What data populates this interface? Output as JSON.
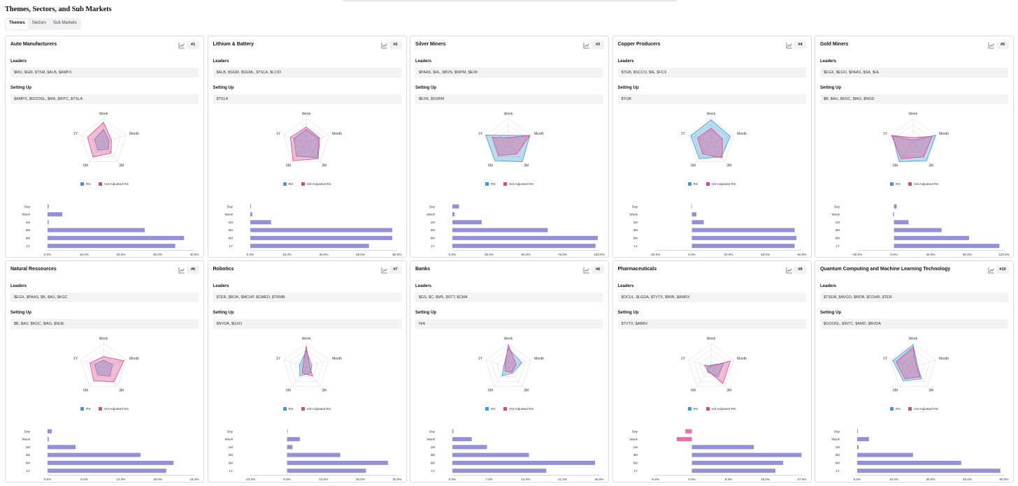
{
  "page": {
    "title": "Themes, Sectors, and Sub Markets",
    "tabs": [
      {
        "label": "Themes",
        "active": true
      },
      {
        "label": "Sectors",
        "active": false
      },
      {
        "label": "Sub Markets",
        "active": false
      }
    ]
  },
  "colors": {
    "rs": "#3a9bd5",
    "vol_adjusted_rs": "#e0438a",
    "bar": "#8f8ad8",
    "grid": "#d8d8d8"
  },
  "labels": {
    "leaders": "Leaders",
    "setting_up": "Setting Up",
    "legend_rs": "RS",
    "legend_vol": "Vol-Adjusted RS",
    "radar_axes": [
      "Week",
      "Month",
      "3M",
      "6M",
      "1Y"
    ],
    "bar_categories": [
      "Day",
      "Week",
      "1M",
      "3M",
      "6M",
      "1Y"
    ]
  },
  "cards": [
    {
      "title": "Auto Manufacturers",
      "rank": "#1",
      "leaders": "$MU, $GM, $TSM, $ALB, $AMPX",
      "setting_up": "$AMPX, $GOOGL, $MA, $INTC, $TSLA",
      "radar": {
        "rs": [
          0.55,
          0.25,
          0.35,
          0.4,
          0.4
        ],
        "vol": [
          0.85,
          0.35,
          0.55,
          0.75,
          0.7
        ]
      },
      "bars": {
        "values": [
          0.3,
          4.0,
          0.3,
          26.5,
          37.2,
          34.8
        ],
        "min": 0,
        "max": 40,
        "ticks": [
          "0.0%",
          "10.0%",
          "20.0%",
          "30.0%",
          "40.0%"
        ]
      }
    },
    {
      "title": "Lithium & Battery",
      "rank": "#2",
      "leaders": "$ALB, $SGM, $SGML, $TSLA, $LCID",
      "setting_up": "$TSLA",
      "radar": {
        "rs": [
          0.55,
          0.55,
          0.8,
          0.7,
          0.55
        ],
        "vol": [
          0.65,
          0.6,
          0.85,
          0.95,
          0.7
        ]
      },
      "bars": {
        "values": [
          0.3,
          0.8,
          8.5,
          58.0,
          58.0,
          48.5
        ],
        "min": 0,
        "max": 60,
        "ticks": [
          "0.0%",
          "15.0%",
          "30.0%",
          "45.0%",
          "60.0%"
        ]
      }
    },
    {
      "title": "Silver Miners",
      "rank": "#3",
      "leaders": "$PAAS, $HL, $BVN, $WPM, $EXK",
      "setting_up": "$EXK, $SSRM",
      "radar": {
        "rs": [
          0.3,
          0.95,
          1.0,
          0.95,
          1.0
        ],
        "vol": [
          0.2,
          0.95,
          0.6,
          0.7,
          0.7
        ]
      },
      "bars": {
        "values": [
          4.5,
          1.5,
          20.0,
          65.0,
          99.0,
          97.5
        ],
        "min": 0,
        "max": 100,
        "ticks": [
          "0.0%",
          "25.0%",
          "50.0%",
          "75.0%",
          "100.0%"
        ]
      }
    },
    {
      "title": "Copper Producers",
      "rank": "#4",
      "leaders": "$TGB, $SCCO, $IE, $FCX",
      "setting_up": "$TGB",
      "radar": {
        "rs": [
          0.95,
          0.85,
          0.75,
          0.85,
          0.9
        ],
        "vol": [
          0.6,
          0.5,
          0.8,
          0.6,
          0.6
        ]
      },
      "bars": {
        "values": [
          -0.3,
          2.5,
          6.5,
          56.0,
          57.0,
          56.0
        ],
        "min": -20,
        "max": 60,
        "ticks": [
          "-20.0%",
          "0.0%",
          "20.0%",
          "40.0%",
          "60.0%"
        ]
      }
    },
    {
      "title": "Gold Miners",
      "rank": "#5",
      "leaders": "$EGX, $EGO, $PAAS, $SA, $HL",
      "setting_up": "$B, $AU, $KGC, $IAG, $NGD",
      "radar": {
        "rs": [
          0.1,
          1.0,
          0.95,
          1.0,
          0.9
        ],
        "vol": [
          0.2,
          0.85,
          0.75,
          0.85,
          0.95
        ]
      },
      "bars": {
        "values": [
          3.0,
          -1.0,
          16.0,
          52.0,
          82.0,
          115.0
        ],
        "min": -40,
        "max": 120,
        "ticks": [
          "-40.0%",
          "0.0%",
          "40.0%",
          "80.0%",
          "120.0%"
        ]
      }
    },
    {
      "title": "Natural Ressources",
      "rank": "#6",
      "leaders": "$EGX, $PAAS, $B, $AU, $KGC",
      "setting_up": "$B, $AU, $KGC, $IAG, $NUE",
      "radar": {
        "rs": [
          0.3,
          0.4,
          0.45,
          0.4,
          0.4
        ],
        "vol": [
          0.45,
          0.9,
          0.75,
          0.7,
          0.6
        ]
      },
      "bars": {
        "values": [
          0.7,
          0.2,
          4.6,
          15.2,
          20.6,
          19.4
        ],
        "min": 0,
        "max": 24,
        "ticks": [
          "0.0%",
          "6.0%",
          "12.0%",
          "18.0%",
          "24.0%"
        ]
      }
    },
    {
      "title": "Robotics",
      "rank": "#7",
      "leaders": "$TER, $ROK, $MCHP, $GMED, $TRMB",
      "setting_up": "$NVDA, $GXO",
      "radar": {
        "rs": [
          0.7,
          0.25,
          0.3,
          0.45,
          0.3
        ],
        "vol": [
          0.9,
          0.15,
          0.45,
          0.3,
          0.15
        ]
      },
      "bars": {
        "values": [
          0.0,
          3.5,
          1.5,
          14.5,
          27.5,
          21.5
        ],
        "min": -10,
        "max": 30,
        "ticks": [
          "-10.0%",
          "0.0%",
          "10.0%",
          "20.0%",
          "30.0%"
        ]
      }
    },
    {
      "title": "Banks",
      "rank": "#8",
      "leaders": "$GS, $C, $MS, $STT, $CMA",
      "setting_up": "N/A",
      "radar": {
        "rs": [
          0.8,
          0.6,
          0.3,
          0.45,
          0.2
        ],
        "vol": [
          0.95,
          0.35,
          0.25,
          0.2,
          0.15
        ]
      },
      "bars": {
        "values": [
          0.2,
          3.7,
          6.6,
          14.6,
          27.2,
          17.9
        ],
        "min": 0,
        "max": 28,
        "ticks": [
          "0.0%",
          "7.0%",
          "14.0%",
          "21.0%",
          "28.0%"
        ]
      }
    },
    {
      "title": "Pharmaceuticals",
      "rank": "#9",
      "leaders": "$OCUL, $LGDA, $TVTX, $BIIB, $AMRX",
      "setting_up": "$TVTX, $ABBV",
      "radar": {
        "rs": [
          0.1,
          0.55,
          0.5,
          0.25,
          0.15
        ],
        "vol": [
          0.05,
          0.85,
          0.85,
          0.2,
          0.3
        ]
      },
      "bars": {
        "values": [
          -1.6,
          -3.7,
          15.2,
          26.9,
          22.4,
          20.5
        ],
        "min": -9,
        "max": 27,
        "ticks": [
          "-9.0%",
          "0.0%",
          "9.0%",
          "18.0%",
          "27.0%"
        ]
      }
    },
    {
      "title": "Quantum Computing and Machine Learning Technology",
      "rank": "#10",
      "leaders": "$TSEM, $AVGO, $MDB, $COHR, $TER",
      "setting_up": "$GOOGL, $INTC, $AMD, $NVDA",
      "radar": {
        "rs": [
          0.95,
          0.2,
          0.6,
          0.7,
          0.9
        ],
        "vol": [
          0.85,
          0.15,
          0.5,
          0.6,
          0.75
        ]
      },
      "bars": {
        "values": [
          0.3,
          4.8,
          0.6,
          22.8,
          42.5,
          58.5
        ],
        "min": 0,
        "max": 60,
        "ticks": [
          "0.0%",
          "15.0%",
          "30.0%",
          "45.0%",
          "60.0%"
        ]
      }
    }
  ]
}
